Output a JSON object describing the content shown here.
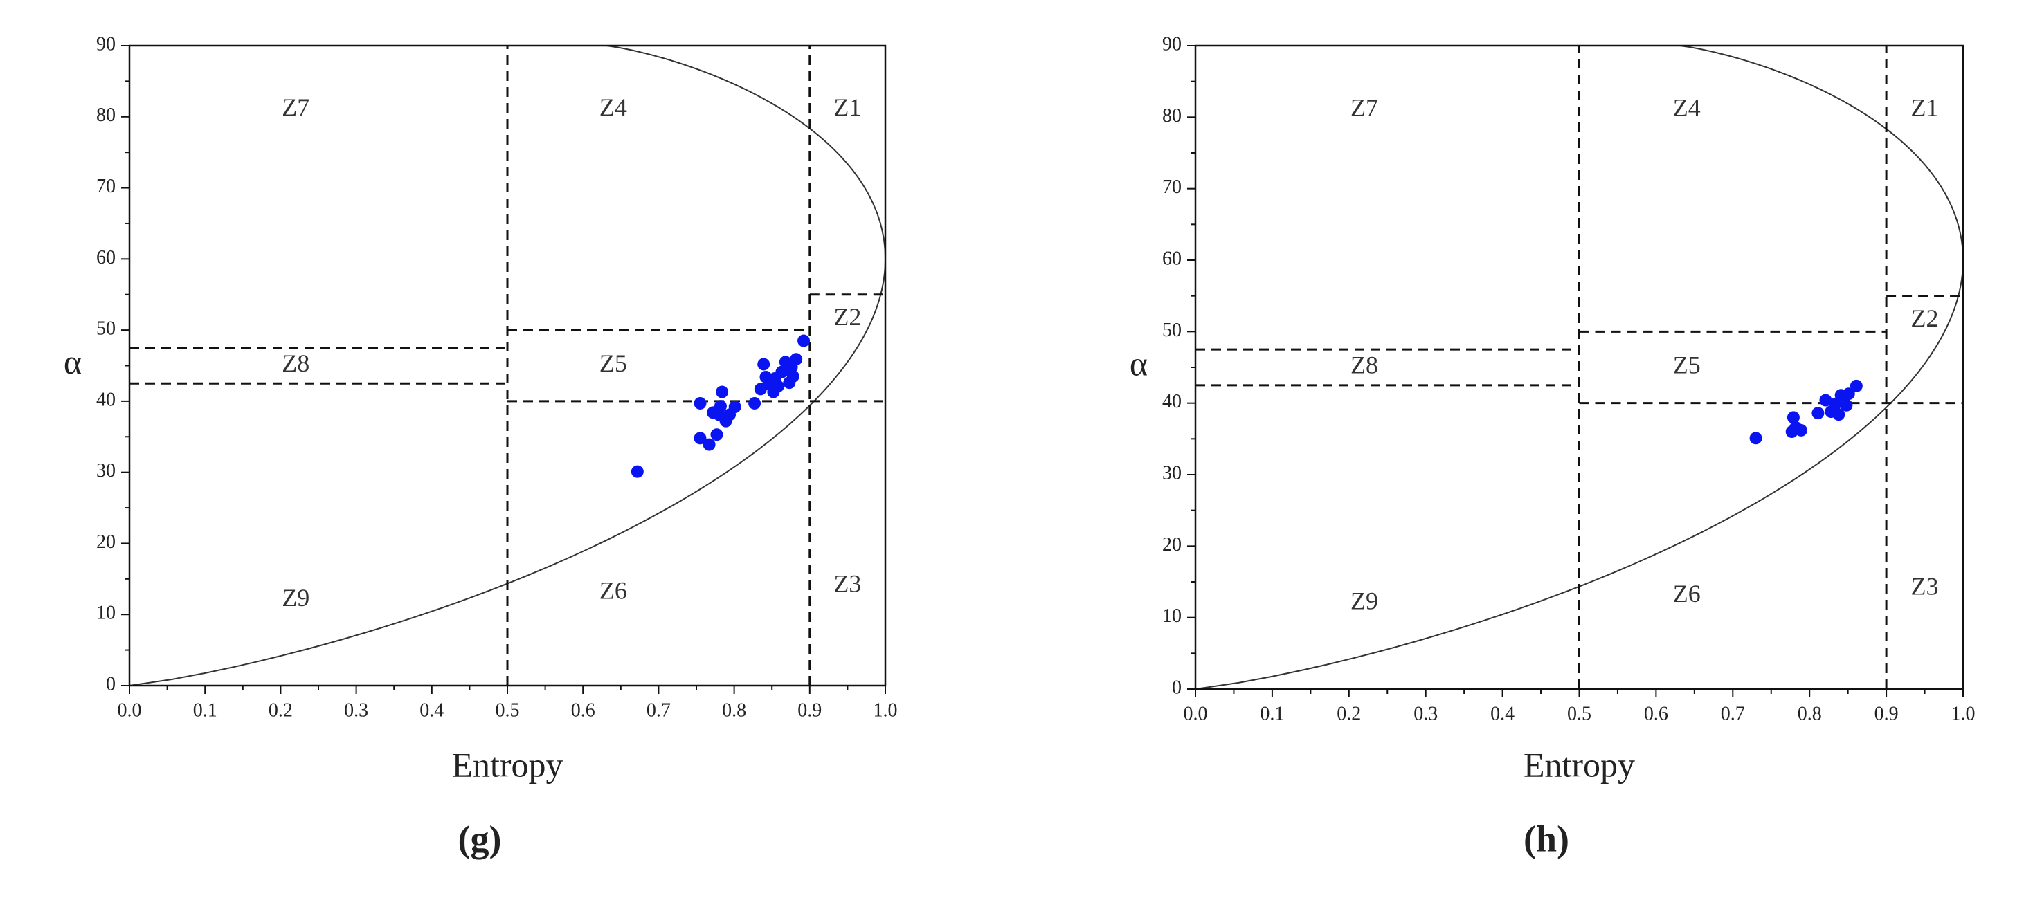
{
  "chart_data": [
    {
      "type": "scatter",
      "panel_label": "(g)",
      "xlabel": "Entropy",
      "ylabel": "α",
      "zone_labels": [
        "Z1",
        "Z2",
        "Z3",
        "Z4",
        "Z5",
        "Z6",
        "Z7",
        "Z8",
        "Z9"
      ],
      "xlim": [
        0,
        1
      ],
      "ylim": [
        0,
        90
      ],
      "xticks": [
        {
          "value": 0,
          "label": "0.0"
        },
        {
          "value": 0.1,
          "label": "0.1"
        },
        {
          "value": 0.2,
          "label": "0.2"
        },
        {
          "value": 0.3,
          "label": "0.3"
        },
        {
          "value": 0.4,
          "label": "0.4"
        },
        {
          "value": 0.5,
          "label": "0.5"
        },
        {
          "value": 0.6,
          "label": "0.6"
        },
        {
          "value": 0.7,
          "label": "0.7"
        },
        {
          "value": 0.8,
          "label": "0.8"
        },
        {
          "value": 0.9,
          "label": "0.9"
        },
        {
          "value": 1,
          "label": "1.0"
        }
      ],
      "yticks": [
        0,
        10,
        20,
        30,
        40,
        50,
        60,
        70,
        80,
        90
      ],
      "dashed_lines": [
        [
          0.5,
          0,
          0.5,
          90
        ],
        [
          0.9,
          0,
          0.9,
          90
        ],
        [
          0.5,
          50,
          0.9,
          50
        ],
        [
          0.5,
          40,
          1,
          40
        ],
        [
          0.9,
          55,
          1,
          55
        ],
        [
          0,
          47.5,
          0.5,
          47.5
        ],
        [
          0,
          42.5,
          0.5,
          42.5
        ]
      ],
      "series": [
        {
          "color": "#0a14f0",
          "x": [
            0.672,
            0.755,
            0.767,
            0.777,
            0.755,
            0.772,
            0.782,
            0.784,
            0.789,
            0.794,
            0.801,
            0.78,
            0.827,
            0.835,
            0.839,
            0.842,
            0.847,
            0.852,
            0.854,
            0.858,
            0.863,
            0.868,
            0.873,
            0.876,
            0.882,
            0.878,
            0.892
          ],
          "values": [
            30.1,
            34.8,
            33.9,
            35.3,
            39.7,
            38.4,
            39.3,
            41.3,
            37.2,
            38.1,
            39.2,
            38.1,
            39.7,
            41.7,
            45.2,
            43.4,
            42.4,
            41.3,
            43.2,
            42.1,
            44.1,
            45.5,
            42.6,
            44.8,
            45.9,
            43.5,
            48.5
          ]
        }
      ]
    },
    {
      "type": "scatter",
      "panel_label": "(h)",
      "xlabel": "Entropy",
      "ylabel": "α",
      "zone_labels": [
        "Z1",
        "Z2",
        "Z3",
        "Z4",
        "Z5",
        "Z6",
        "Z7",
        "Z8",
        "Z9"
      ],
      "xlim": [
        0,
        1
      ],
      "ylim": [
        0,
        90
      ],
      "xticks": [
        {
          "value": 0,
          "label": "0.0"
        },
        {
          "value": 0.1,
          "label": "0.1"
        },
        {
          "value": 0.2,
          "label": "0.2"
        },
        {
          "value": 0.3,
          "label": "0.3"
        },
        {
          "value": 0.4,
          "label": "0.4"
        },
        {
          "value": 0.5,
          "label": "0.5"
        },
        {
          "value": 0.6,
          "label": "0.6"
        },
        {
          "value": 0.7,
          "label": "0.7"
        },
        {
          "value": 0.8,
          "label": "0.8"
        },
        {
          "value": 0.9,
          "label": "0.9"
        },
        {
          "value": 1,
          "label": "1.0"
        }
      ],
      "yticks": [
        0,
        10,
        20,
        30,
        40,
        50,
        60,
        70,
        80,
        90
      ],
      "dashed_lines": [
        [
          0.5,
          0,
          0.5,
          90
        ],
        [
          0.9,
          0,
          0.9,
          90
        ],
        [
          0.5,
          50,
          0.9,
          50
        ],
        [
          0.5,
          40,
          1,
          40
        ],
        [
          0.9,
          55,
          1,
          55
        ],
        [
          0,
          47.5,
          0.5,
          47.5
        ],
        [
          0,
          42.5,
          0.5,
          42.5
        ]
      ],
      "series": [
        {
          "color": "#0a14f0",
          "x": [
            0.73,
            0.779,
            0.782,
            0.777,
            0.789,
            0.811,
            0.821,
            0.828,
            0.834,
            0.838,
            0.841,
            0.848,
            0.851,
            0.861
          ],
          "values": [
            35.1,
            38.0,
            36.6,
            36.0,
            36.2,
            38.6,
            40.4,
            38.8,
            39.9,
            38.4,
            41.1,
            39.7,
            41.3,
            42.4
          ]
        }
      ]
    }
  ]
}
